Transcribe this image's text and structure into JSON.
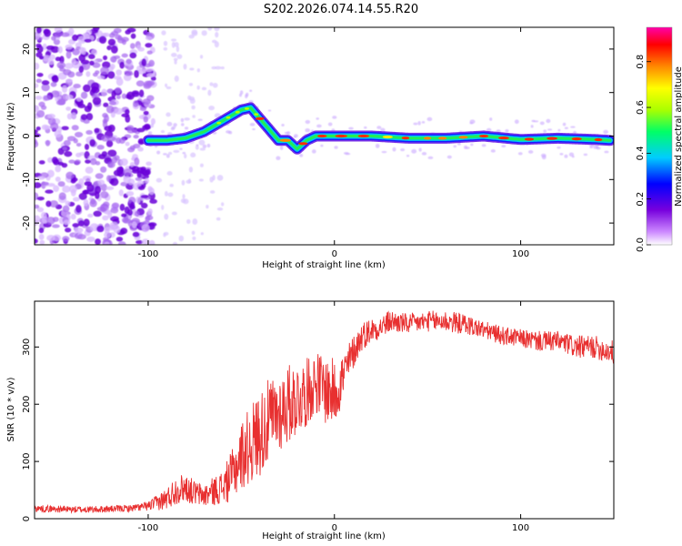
{
  "title": "S202.2026.074.14.55.R20",
  "chart_data": [
    {
      "type": "heatmap",
      "name": "spectrogram",
      "xlabel": "Height of straight line (km)",
      "ylabel": "Frequency (Hz)",
      "xlim": [
        -161,
        150
      ],
      "ylim": [
        -25,
        25
      ],
      "x_ticks": [
        -100,
        0,
        100
      ],
      "y_ticks": [
        20,
        10,
        0,
        -10,
        -20
      ],
      "x_tick_labels": [
        "-100",
        "0",
        "100"
      ],
      "y_tick_labels": [
        "20",
        "10",
        "0",
        "-10",
        "-20"
      ],
      "colorbar": {
        "label": "Normalized spectral amplitude",
        "range": [
          0,
          0.95
        ],
        "ticks": [
          0.0,
          0.2,
          0.4,
          0.6,
          0.8
        ],
        "tick_labels": [
          "0.0",
          "0.2",
          "0.4",
          "0.6",
          "0.8"
        ],
        "colormap": [
          "#ffffff",
          "#cc88ff",
          "#7700dd",
          "#0000ff",
          "#00ccff",
          "#00ff66",
          "#aaff00",
          "#ffff00",
          "#ff8800",
          "#ff0000",
          "#ff00aa"
        ]
      },
      "ridge": {
        "x": [
          -100,
          -90,
          -80,
          -70,
          -60,
          -50,
          -45,
          -40,
          -35,
          -30,
          -25,
          -20,
          -15,
          -10,
          0,
          20,
          40,
          60,
          80,
          100,
          120,
          140,
          148
        ],
        "y": [
          -1,
          -1,
          -0.5,
          1,
          3.5,
          6,
          6.5,
          4,
          1.5,
          -1,
          -1,
          -3,
          -1,
          0,
          0,
          0,
          -0.5,
          -0.5,
          0,
          -0.8,
          -0.5,
          -0.8,
          -1
        ],
        "note": "dominant spectral ridge (peak frequency vs height)"
      },
      "noise_region_x": [
        -161,
        -100
      ]
    },
    {
      "type": "line",
      "name": "snr",
      "xlabel": "Height of straight line (km)",
      "ylabel": "SNR (10 * v/v)",
      "xlim": [
        -161,
        150
      ],
      "ylim": [
        0,
        380
      ],
      "x_ticks": [
        -100,
        0,
        100
      ],
      "y_ticks": [
        0,
        100,
        200,
        300
      ],
      "x_tick_labels": [
        "-100",
        "0",
        "100"
      ],
      "y_tick_labels": [
        "0",
        "100",
        "200",
        "300"
      ],
      "color": "#e83030",
      "series": [
        {
          "name": "SNR",
          "x": [
            -161,
            -150,
            -140,
            -130,
            -120,
            -110,
            -100,
            -90,
            -85,
            -80,
            -75,
            -70,
            -65,
            -60,
            -55,
            -50,
            -45,
            -40,
            -35,
            -30,
            -25,
            -20,
            -15,
            -10,
            -5,
            0,
            5,
            10,
            15,
            20,
            25,
            30,
            40,
            50,
            60,
            70,
            80,
            90,
            100,
            110,
            120,
            130,
            140,
            150
          ],
          "y": [
            18,
            17,
            16,
            16,
            17,
            18,
            22,
            35,
            50,
            55,
            45,
            40,
            48,
            55,
            75,
            110,
            130,
            150,
            170,
            185,
            200,
            210,
            220,
            240,
            225,
            220,
            250,
            290,
            320,
            330,
            335,
            345,
            340,
            345,
            345,
            340,
            330,
            320,
            315,
            310,
            310,
            300,
            300,
            290
          ],
          "noise_amplitude": [
            6,
            6,
            6,
            6,
            6,
            6,
            8,
            20,
            25,
            25,
            22,
            20,
            25,
            30,
            45,
            60,
            70,
            75,
            75,
            70,
            70,
            65,
            60,
            55,
            60,
            60,
            45,
            30,
            25,
            22,
            20,
            20,
            18,
            18,
            20,
            18,
            16,
            16,
            16,
            18,
            18,
            20,
            20,
            22
          ]
        }
      ]
    }
  ]
}
